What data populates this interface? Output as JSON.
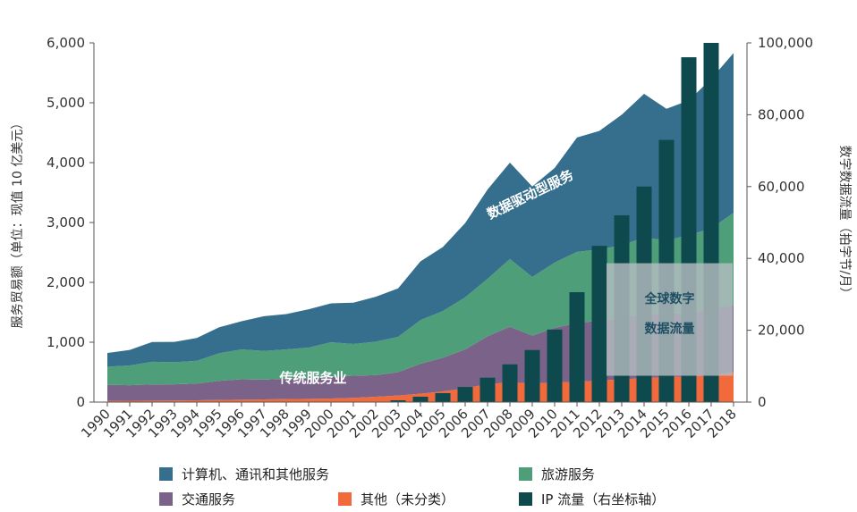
{
  "colors": {
    "ict": "#366f8e",
    "travel": "#4f9e7a",
    "transport": "#7a6289",
    "other": "#f26a3c",
    "ip": "#0e4a4d",
    "box": "#b3bcbf"
  },
  "chart_data": {
    "type": "area",
    "x": [
      "1990",
      "1991",
      "1992",
      "1993",
      "1994",
      "1995",
      "1996",
      "1997",
      "1998",
      "1999",
      "2000",
      "2001",
      "2002",
      "2003",
      "2004",
      "2005",
      "2006",
      "2007",
      "2008",
      "2009",
      "2010",
      "2011",
      "2012",
      "2013",
      "2014",
      "2015",
      "2016",
      "2017",
      "2018"
    ],
    "series": [
      {
        "name": "其他（未分类）",
        "color_key": "other",
        "stack": "left",
        "values": [
          20,
          22,
          24,
          26,
          30,
          35,
          40,
          45,
          50,
          55,
          60,
          70,
          90,
          110,
          140,
          180,
          230,
          300,
          330,
          310,
          330,
          340,
          360,
          380,
          400,
          420,
          430,
          450,
          500
        ]
      },
      {
        "name": "交通服务",
        "color_key": "transport",
        "stack": "left",
        "values": [
          270,
          260,
          270,
          270,
          280,
          320,
          340,
          330,
          340,
          345,
          360,
          370,
          360,
          390,
          500,
          560,
          650,
          800,
          930,
          800,
          910,
          980,
          1000,
          1020,
          1080,
          1050,
          1060,
          1100,
          1120
        ]
      },
      {
        "name": "旅游服务",
        "color_key": "travel",
        "stack": "left",
        "values": [
          300,
          330,
          380,
          370,
          380,
          460,
          500,
          480,
          490,
          510,
          580,
          530,
          560,
          590,
          730,
          780,
          870,
          960,
          1130,
          980,
          1090,
          1190,
          1190,
          1220,
          1270,
          1230,
          1300,
          1350,
          1540
        ]
      },
      {
        "name": "计算机、通讯和其他服务",
        "color_key": "ict",
        "stack": "left",
        "values": [
          230,
          260,
          330,
          340,
          380,
          435,
          470,
          580,
          590,
          640,
          650,
          690,
          750,
          810,
          980,
          1070,
          1240,
          1490,
          1610,
          1510,
          1580,
          1910,
          1980,
          2180,
          2400,
          2200,
          2250,
          2500,
          2670
        ]
      },
      {
        "name": "IP 流量（右坐标轴）",
        "color_key": "ip",
        "stack": "right",
        "type": "bar",
        "values": [
          0,
          0,
          0,
          0,
          0,
          0,
          0,
          0,
          0,
          0,
          0,
          0,
          0,
          500,
          1500,
          2500,
          4200,
          6800,
          10500,
          14500,
          20200,
          30600,
          43500,
          52000,
          60000,
          73000,
          96000,
          100000,
          null
        ]
      }
    ],
    "ylabel": "服务贸易额（单位：现值 10 亿美元）",
    "y2label": "数字数据流量（拍字节/月）",
    "ylim": [
      0,
      6000
    ],
    "y2lim": [
      0,
      100000
    ],
    "yticks": [
      "0",
      "1,000",
      "2,000",
      "3,000",
      "4,000",
      "5,000",
      "6,000"
    ],
    "y2ticks": [
      "0",
      "20,000",
      "40,000",
      "60,000",
      "80,000",
      "100,000"
    ],
    "annotations": {
      "data_driven": "数据驱动型服务",
      "traditional": "传统服务业",
      "box_line1": "全球数字",
      "box_line2": "数据流量"
    },
    "legend": [
      "计算机、通讯和其他服务",
      "旅游服务",
      "交通服务",
      "其他（未分类）",
      "IP 流量（右坐标轴）"
    ]
  }
}
